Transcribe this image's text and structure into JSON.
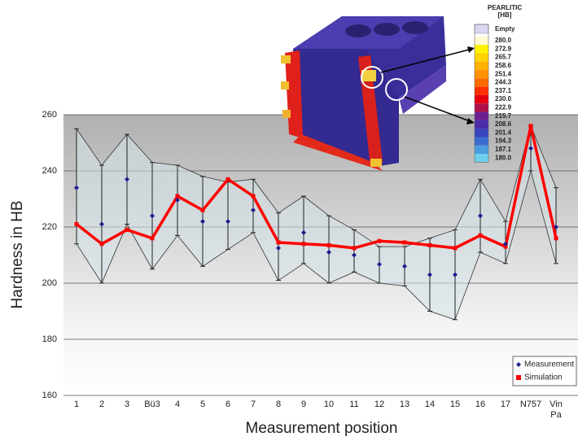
{
  "chart_data": {
    "type": "line",
    "x_label": "Measurement position",
    "y_label": "Hardness in HB",
    "categories": [
      "1",
      "2",
      "3",
      "Bü3",
      "4",
      "5",
      "6",
      "7",
      "8",
      "9",
      "10",
      "11",
      "12",
      "13",
      "14",
      "15",
      "16",
      "17",
      "N757",
      "Vin Pa"
    ],
    "ylim": [
      160,
      260
    ],
    "yticks": [
      160,
      180,
      200,
      220,
      240,
      260
    ],
    "grid": true,
    "legend": "lower right",
    "series": [
      {
        "name": "Measurement",
        "color": "#1c1c8c",
        "marker": "diamond",
        "values": [
          234,
          221,
          237,
          224,
          229.6,
          222,
          222,
          226,
          212.5,
          218,
          211,
          210,
          206.7,
          206,
          203,
          203,
          224,
          214,
          248,
          220
        ],
        "error_high": [
          255,
          242,
          253,
          243,
          242,
          238,
          236,
          237,
          225,
          231,
          224,
          219,
          213,
          213,
          216,
          219,
          237,
          222,
          256,
          234
        ],
        "error_low": [
          214,
          200,
          221,
          205,
          217,
          206,
          212,
          218,
          201,
          207,
          200,
          204,
          200,
          199,
          190,
          187,
          211,
          207,
          240,
          207
        ]
      },
      {
        "name": "Simulation",
        "color": "#ff0000",
        "marker": "square",
        "values": [
          221,
          214,
          219,
          216,
          231,
          226,
          237,
          231,
          214.5,
          214,
          213.5,
          212.5,
          215,
          214.5,
          213.5,
          212.5,
          217,
          213,
          256,
          216
        ]
      }
    ]
  },
  "inset": {
    "colorbar": {
      "title": "PEARLITIC",
      "unit": "[HB]",
      "empty_label": "Empty",
      "labels": [
        "280.0",
        "272.9",
        "265.7",
        "258.6",
        "251.4",
        "244.3",
        "237.1",
        "230.0",
        "222.9",
        "215.7",
        "208.6",
        "201.4",
        "194.3",
        "187.1",
        "180.0"
      ],
      "colors": [
        "#fffbd0",
        "#fff200",
        "#ffd400",
        "#ffb000",
        "#ff9000",
        "#ff6a00",
        "#ff3000",
        "#e60012",
        "#b0104a",
        "#6a2090",
        "#4a2ca8",
        "#3a44c0",
        "#3c6cd0",
        "#4a9ee0",
        "#6cd0ec"
      ]
    }
  }
}
